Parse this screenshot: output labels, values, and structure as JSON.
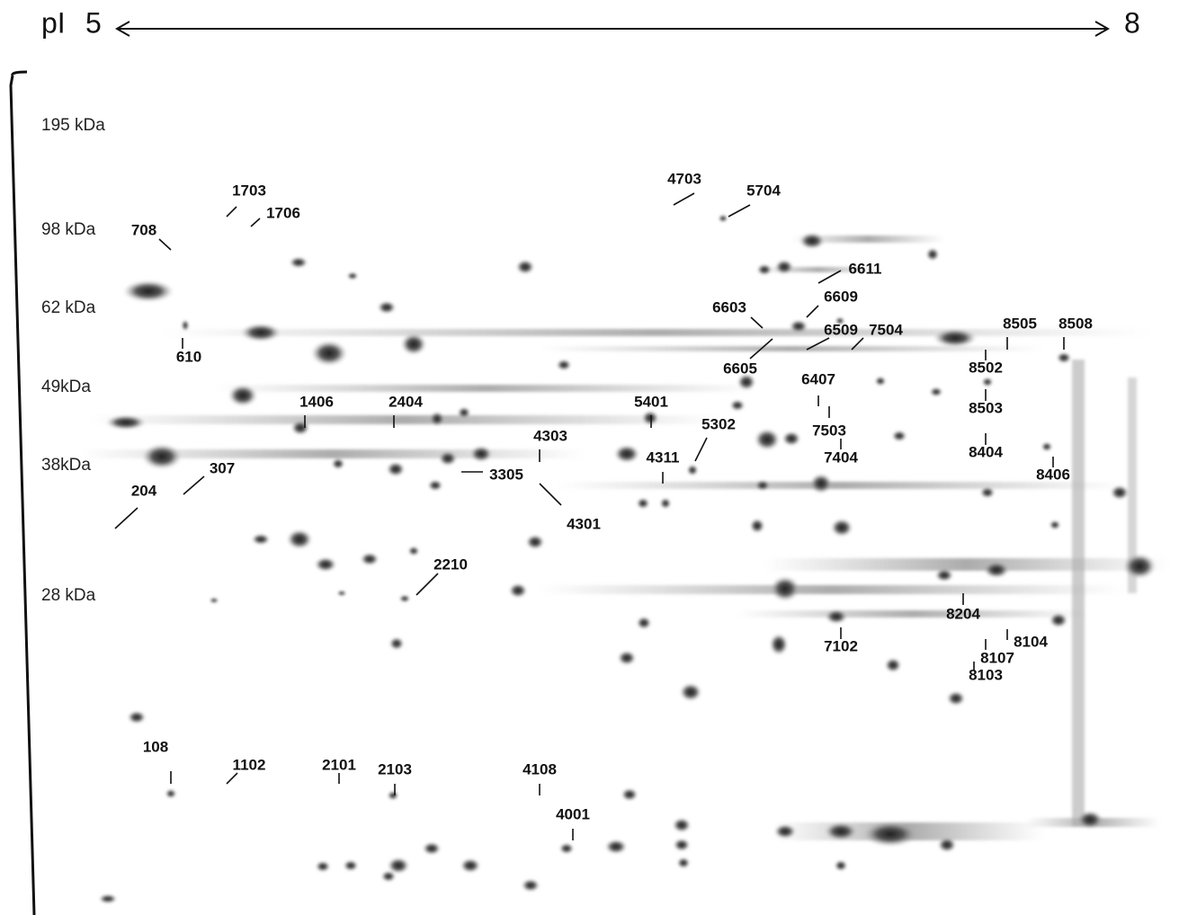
{
  "header": {
    "axis_label": "pI",
    "start": "5",
    "end": "8"
  },
  "mass_markers": [
    "195 kDa",
    "98 kDa",
    "62 kDa",
    "49kDa",
    "38kDa",
    "28 kDa"
  ],
  "spot_labels": [
    "1703",
    "1706",
    "708",
    "610",
    "1406",
    "2404",
    "307",
    "204",
    "4303",
    "3305",
    "4301",
    "2210",
    "4703",
    "5704",
    "5401",
    "5302",
    "4311",
    "6611",
    "6609",
    "6603",
    "6605",
    "6509",
    "7504",
    "6407",
    "7503",
    "7404",
    "8505",
    "8508",
    "8502",
    "8503",
    "8404",
    "8406",
    "8204",
    "7102",
    "8104",
    "8107",
    "8103",
    "108",
    "1102",
    "2101",
    "2103",
    "4108",
    "4001"
  ]
}
